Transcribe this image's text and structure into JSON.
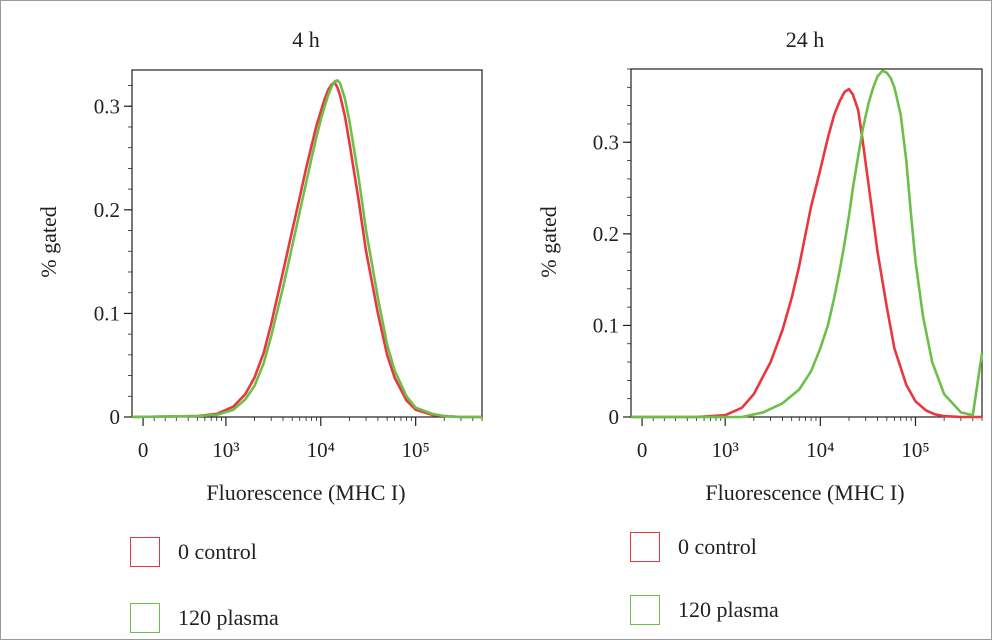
{
  "chart_data": [
    {
      "type": "line",
      "title": "4 h",
      "xlabel": "Fluorescence (MHC I)",
      "ylabel": "% gated",
      "x_scale": "biexponential",
      "x_tick_labels": [
        "0",
        "10³",
        "10⁴",
        "10⁵"
      ],
      "x_ticks": [
        0,
        1000,
        10000,
        100000
      ],
      "xlim": [
        -100,
        500000
      ],
      "y_ticks": [
        0,
        0.1,
        0.2,
        0.3
      ],
      "y_tick_labels": [
        "0",
        "0.1",
        "0.2",
        "0.3"
      ],
      "ylim": [
        0,
        0.335
      ],
      "legend": [
        "0 control",
        "120 plasma"
      ],
      "series": [
        {
          "name": "0 control",
          "color": "#e8383d",
          "x": [
            500,
            800,
            1200,
            1600,
            2000,
            2500,
            3000,
            4000,
            5000,
            6000,
            7000,
            8000,
            9000,
            10000,
            11000,
            12000,
            13000,
            14000,
            15000,
            16000,
            18000,
            20000,
            25000,
            30000,
            40000,
            50000,
            60000,
            80000,
            100000,
            150000,
            200000,
            300000,
            500000
          ],
          "y": [
            0.001,
            0.003,
            0.01,
            0.022,
            0.038,
            0.062,
            0.09,
            0.14,
            0.18,
            0.212,
            0.24,
            0.262,
            0.281,
            0.295,
            0.307,
            0.316,
            0.321,
            0.323,
            0.318,
            0.31,
            0.29,
            0.265,
            0.21,
            0.16,
            0.1,
            0.06,
            0.038,
            0.016,
            0.007,
            0.002,
            0.001,
            0.0,
            0.0
          ]
        },
        {
          "name": "120 plasma",
          "color": "#6cc04a",
          "x": [
            500,
            800,
            1200,
            1600,
            2000,
            2500,
            3000,
            4000,
            5000,
            6000,
            7000,
            8000,
            9000,
            10000,
            11000,
            12000,
            13000,
            14000,
            15000,
            16000,
            18000,
            20000,
            25000,
            30000,
            40000,
            50000,
            60000,
            80000,
            100000,
            150000,
            200000,
            300000,
            500000
          ],
          "y": [
            0.001,
            0.002,
            0.007,
            0.017,
            0.03,
            0.052,
            0.078,
            0.125,
            0.165,
            0.198,
            0.226,
            0.25,
            0.27,
            0.287,
            0.3,
            0.311,
            0.319,
            0.324,
            0.325,
            0.322,
            0.307,
            0.286,
            0.232,
            0.18,
            0.115,
            0.07,
            0.045,
            0.02,
            0.009,
            0.003,
            0.001,
            0.0,
            0.0
          ]
        }
      ]
    },
    {
      "type": "line",
      "title": "24 h",
      "xlabel": "Fluorescence (MHC I)",
      "ylabel": "% gated",
      "x_scale": "biexponential",
      "x_tick_labels": [
        "0",
        "10³",
        "10⁴",
        "10⁵"
      ],
      "x_ticks": [
        0,
        1000,
        10000,
        100000
      ],
      "xlim": [
        -100,
        500000
      ],
      "y_ticks": [
        0,
        0.1,
        0.2,
        0.3
      ],
      "y_tick_labels": [
        "0",
        "0.1",
        "0.2",
        "0.3"
      ],
      "ylim": [
        0,
        0.38
      ],
      "legend": [
        "0 control",
        "120 plasma"
      ],
      "series": [
        {
          "name": "0 control",
          "color": "#e8383d",
          "x": [
            500,
            1000,
            1500,
            2000,
            3000,
            4000,
            5000,
            6000,
            7000,
            8000,
            10000,
            12000,
            14000,
            16000,
            18000,
            20000,
            22000,
            25000,
            28000,
            32000,
            36000,
            40000,
            50000,
            60000,
            80000,
            100000,
            130000,
            160000,
            200000,
            300000,
            500000
          ],
          "y": [
            0.0,
            0.002,
            0.01,
            0.025,
            0.06,
            0.095,
            0.13,
            0.165,
            0.2,
            0.23,
            0.27,
            0.305,
            0.33,
            0.345,
            0.355,
            0.358,
            0.352,
            0.335,
            0.3,
            0.255,
            0.215,
            0.18,
            0.12,
            0.075,
            0.035,
            0.017,
            0.007,
            0.003,
            0.001,
            0.0,
            0.0
          ]
        },
        {
          "name": "120 plasma",
          "color": "#6cc04a",
          "x": [
            1500,
            2500,
            4000,
            6000,
            8000,
            10000,
            12000,
            14000,
            16000,
            18000,
            20000,
            22000,
            25000,
            28000,
            32000,
            36000,
            40000,
            45000,
            50000,
            55000,
            60000,
            70000,
            80000,
            90000,
            100000,
            120000,
            150000,
            200000,
            300000,
            400000,
            500000
          ],
          "y": [
            0.0,
            0.005,
            0.015,
            0.03,
            0.05,
            0.075,
            0.1,
            0.13,
            0.16,
            0.19,
            0.22,
            0.25,
            0.285,
            0.315,
            0.342,
            0.36,
            0.372,
            0.378,
            0.376,
            0.37,
            0.36,
            0.33,
            0.28,
            0.22,
            0.17,
            0.11,
            0.06,
            0.025,
            0.005,
            0.002,
            0.07
          ]
        }
      ]
    }
  ]
}
